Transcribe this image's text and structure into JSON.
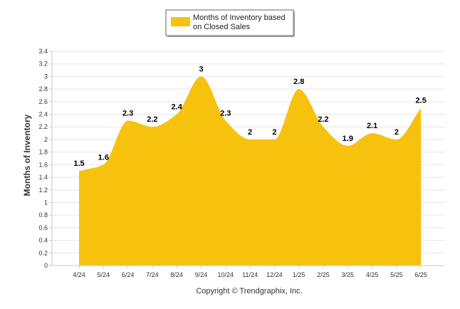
{
  "chart_data": {
    "type": "area",
    "categories": [
      "4/24",
      "5/24",
      "6/24",
      "7/24",
      "8/24",
      "9/24",
      "10/24",
      "11/24",
      "12/24",
      "1/25",
      "2/25",
      "3/25",
      "4/25",
      "5/25",
      "6/25"
    ],
    "series": [
      {
        "name": "Months of Inventory based on Closed Sales",
        "values": [
          1.5,
          1.6,
          2.3,
          2.2,
          2.4,
          3,
          2.3,
          2,
          2,
          2.8,
          2.2,
          1.9,
          2.1,
          2,
          2.5
        ]
      }
    ],
    "data_labels": [
      "1.5",
      "1.6",
      "2.3",
      "2.2",
      "2.4",
      "3",
      "2.3",
      "2",
      "2",
      "2.8",
      "2.2",
      "1.9",
      "2.1",
      "2",
      "2.5"
    ],
    "ylabel": "Months of Inventory",
    "xlabel": "",
    "ylim": [
      0,
      3.4
    ],
    "yticks": [
      0,
      0.2,
      0.4,
      0.6,
      0.8,
      1,
      1.2,
      1.4,
      1.6,
      1.8,
      2,
      2.2,
      2.4,
      2.6,
      2.8,
      3,
      3.2,
      3.4
    ],
    "ytick_labels": [
      "0",
      "0.2",
      "0.4",
      "0.6",
      "0.8",
      "1",
      "1.2",
      "1.4",
      "1.6",
      "1.8",
      "2",
      "2.2",
      "2.4",
      "2.6",
      "2.8",
      "3",
      "3.2",
      "3.4"
    ],
    "grid": true,
    "legend_position": "top-center",
    "colors": {
      "area": "#f7c20e",
      "grid": "#e6e6e6",
      "axis": "#c8c8c8"
    }
  },
  "legend": {
    "line1": "Months of Inventory based",
    "line2": "on Closed Sales"
  },
  "footer": {
    "copyright": "Copyright © Trendgraphix, Inc."
  }
}
